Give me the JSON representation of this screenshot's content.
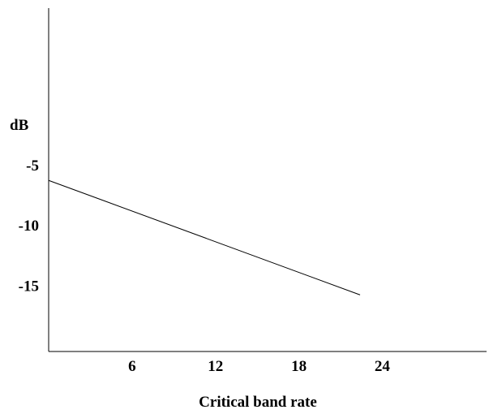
{
  "chart_data": {
    "type": "line",
    "title": "",
    "xlabel": "Critical band rate",
    "ylabel": "dB",
    "x_ticks": [
      {
        "value": 6,
        "label": "6"
      },
      {
        "value": 12,
        "label": "12"
      },
      {
        "value": 18,
        "label": "18"
      },
      {
        "value": 24,
        "label": "24"
      }
    ],
    "y_ticks": [
      {
        "value": -5,
        "label": "-5"
      },
      {
        "value": -10,
        "label": "-10"
      },
      {
        "value": -15,
        "label": "-15"
      }
    ],
    "xlim": [
      0,
      31.5
    ],
    "ylim": [
      -20.5,
      8
    ],
    "grid": false,
    "series": [
      {
        "color": "#000000",
        "points": [
          {
            "x": 0,
            "y": -6.3
          },
          {
            "x": 22.4,
            "y": -15.8
          }
        ]
      }
    ]
  }
}
